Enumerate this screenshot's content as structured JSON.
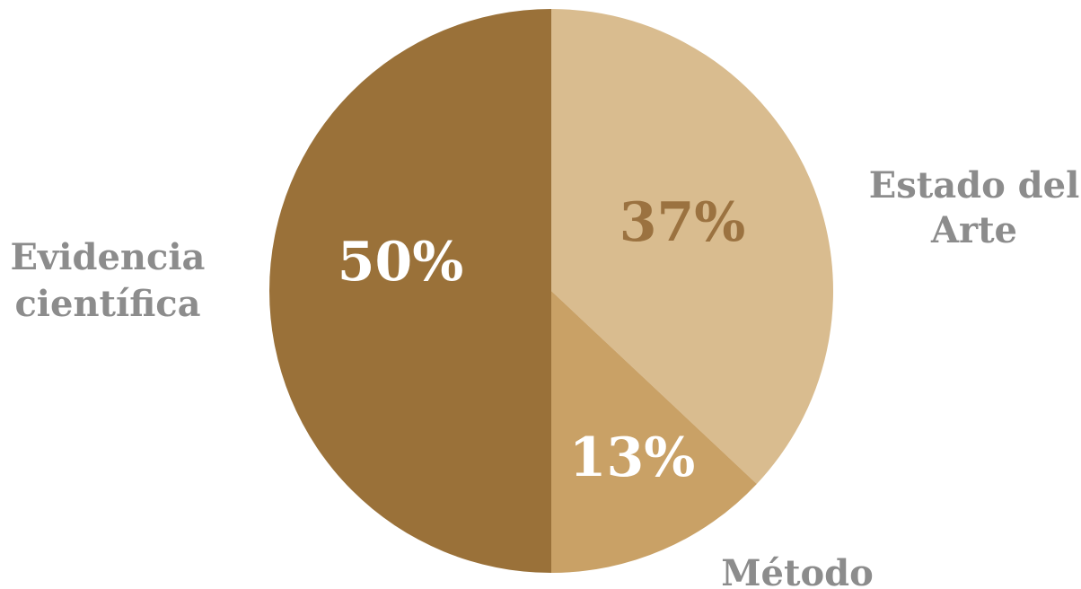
{
  "chart_data": {
    "type": "pie",
    "title": "",
    "slices": [
      {
        "name": "Estado del Arte",
        "name_lines": [
          "Estado del",
          "Arte"
        ],
        "value": 37,
        "label": "37%",
        "color": "#d9bc8f",
        "label_color": "#9b7240",
        "category_color": "#8c8c8c"
      },
      {
        "name": "Método",
        "name_lines": [
          "Método"
        ],
        "value": 13,
        "label": "13%",
        "color": "#c9a166",
        "label_color": "#ffffff",
        "category_color": "#8c8c8c"
      },
      {
        "name": "Evidencia científica",
        "name_lines": [
          "Evidencia",
          "científica"
        ],
        "value": 50,
        "label": "50%",
        "color": "#9a7139",
        "label_color": "#ffffff",
        "category_color": "#8c8c8c"
      }
    ],
    "start_angle": "12 o'clock",
    "direction": "clockwise",
    "legend": "none"
  }
}
